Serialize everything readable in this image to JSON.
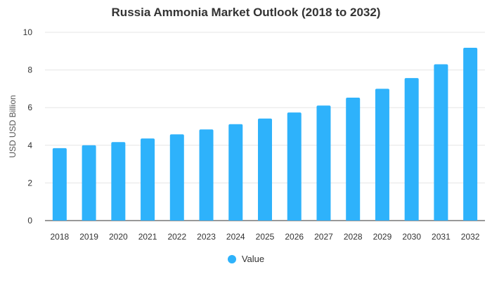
{
  "chart_data": {
    "type": "bar",
    "title": "Russia Ammonia Market Outlook (2018 to 2032)",
    "xlabel": "",
    "ylabel": "USD USD Billion",
    "categories": [
      "2018",
      "2019",
      "2020",
      "2021",
      "2022",
      "2023",
      "2024",
      "2025",
      "2026",
      "2027",
      "2028",
      "2029",
      "2030",
      "2031",
      "2032"
    ],
    "series": [
      {
        "name": "Value",
        "color": "#2eb2fb",
        "values": [
          3.85,
          4.0,
          4.17,
          4.36,
          4.58,
          4.84,
          5.12,
          5.42,
          5.74,
          6.11,
          6.53,
          7.0,
          7.57,
          8.3,
          9.18
        ]
      }
    ],
    "ylim": [
      0,
      10
    ],
    "yticks": [
      0,
      2,
      4,
      6,
      8,
      10
    ],
    "grid": true,
    "legend_position": "bottom"
  }
}
